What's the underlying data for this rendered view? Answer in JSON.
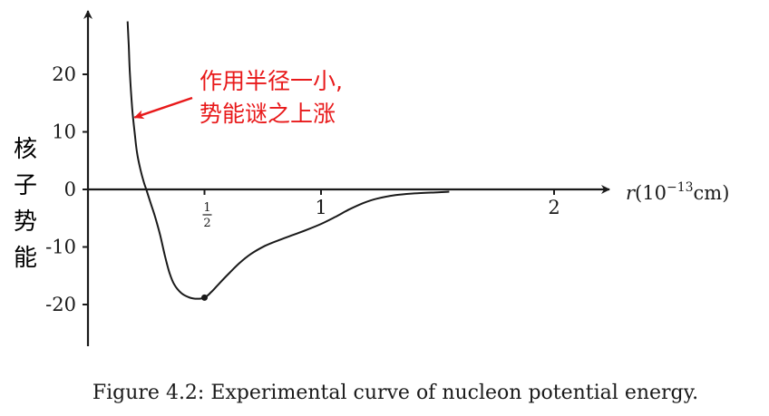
{
  "chart_data": {
    "type": "line",
    "xlabel": "r(10⁻¹³cm)",
    "ylabel": [
      "核",
      "子",
      "势",
      "能"
    ],
    "xlim": [
      0,
      2.2
    ],
    "ylim": [
      -26,
      30
    ],
    "x_ticks": [
      {
        "value": 0.5,
        "label": "1/2",
        "numerator": "1",
        "denominator": "2"
      },
      {
        "value": 1,
        "label": "1"
      },
      {
        "value": 2,
        "label": "2"
      }
    ],
    "y_ticks": [
      {
        "value": 20,
        "label": "20"
      },
      {
        "value": 10,
        "label": "10"
      },
      {
        "value": 0,
        "label": "0"
      },
      {
        "value": -10,
        "label": "-10"
      },
      {
        "value": -20,
        "label": "-20"
      }
    ],
    "series": [
      {
        "color": "#1a1a1a",
        "points": [
          [
            0.17,
            29.2
          ],
          [
            0.175,
            25
          ],
          [
            0.18,
            20
          ],
          [
            0.19,
            14
          ],
          [
            0.2,
            10
          ],
          [
            0.21,
            6.5
          ],
          [
            0.225,
            3.5
          ],
          [
            0.24,
            1.2
          ],
          [
            0.25,
            0
          ],
          [
            0.27,
            -2.5
          ],
          [
            0.29,
            -5
          ],
          [
            0.31,
            -8
          ],
          [
            0.33,
            -11.5
          ],
          [
            0.35,
            -14.5
          ],
          [
            0.37,
            -16.5
          ],
          [
            0.4,
            -18
          ],
          [
            0.43,
            -18.7
          ],
          [
            0.46,
            -19
          ],
          [
            0.5,
            -18.8
          ],
          [
            0.53,
            -17.8
          ],
          [
            0.56,
            -16.5
          ],
          [
            0.6,
            -14.8
          ],
          [
            0.65,
            -12.8
          ],
          [
            0.7,
            -11.2
          ],
          [
            0.76,
            -9.8
          ],
          [
            0.82,
            -8.8
          ],
          [
            0.88,
            -7.9
          ],
          [
            0.94,
            -7.0
          ],
          [
            1.0,
            -6.0
          ],
          [
            1.06,
            -4.8
          ],
          [
            1.12,
            -3.5
          ],
          [
            1.18,
            -2.4
          ],
          [
            1.24,
            -1.6
          ],
          [
            1.32,
            -1.0
          ],
          [
            1.4,
            -0.7
          ],
          [
            1.5,
            -0.5
          ],
          [
            1.55,
            -0.4
          ]
        ]
      }
    ],
    "marked_point": {
      "x": 0.5,
      "y": -18.8
    },
    "annotation": {
      "lines": [
        "作用半径一小,",
        "势能谜之上涨"
      ],
      "color": "#e8191a",
      "arrow_to": {
        "x": 0.2,
        "y": 12.5
      }
    },
    "caption": "Figure 4.2: Experimental curve of nucleon potential energy."
  }
}
